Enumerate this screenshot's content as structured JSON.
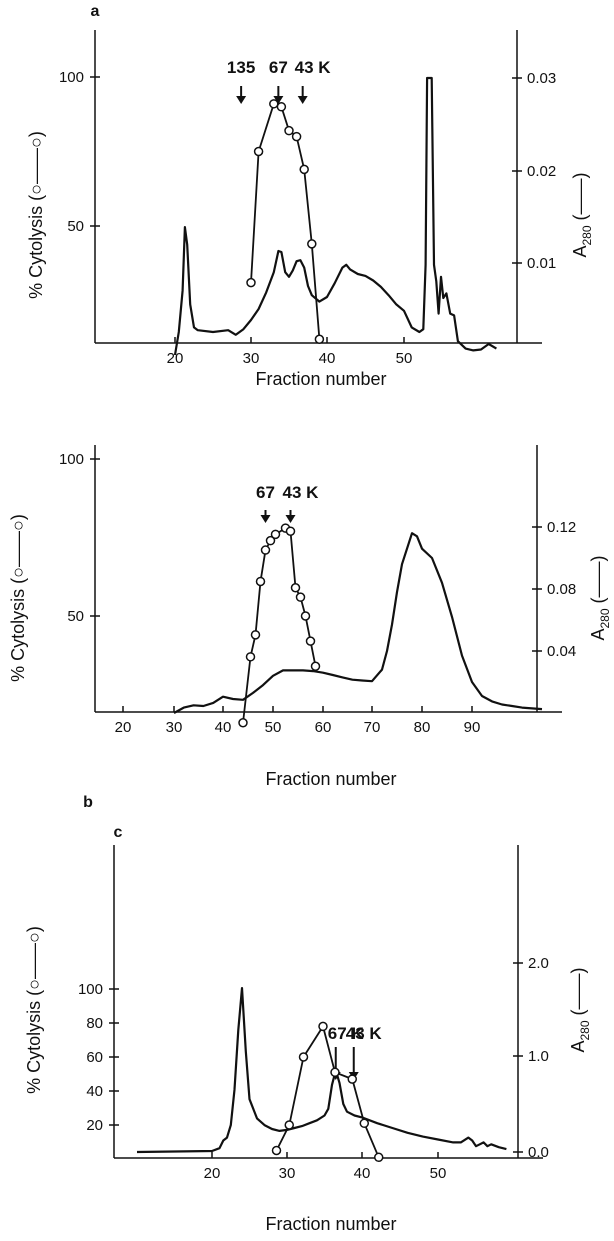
{
  "chart_data": [
    {
      "panel": "a",
      "type": "line",
      "xlabel": "Fraction number",
      "ylabel": "% Cytolysis (○——○)",
      "y2label": "A280 (——)",
      "x_ticks": [
        "20",
        "30",
        "40",
        "50"
      ],
      "y_ticks": [
        "50",
        "100"
      ],
      "y2_ticks": [
        "0.01",
        "0.02",
        "0.03"
      ],
      "markers": [
        {
          "label": "135",
          "fraction": 28.7
        },
        {
          "label": "67",
          "fraction": 33.6
        },
        {
          "label": "43 K",
          "fraction": 36.8
        }
      ],
      "series": [
        {
          "role": "cytolysis",
          "x": [
            30,
            31,
            33,
            34,
            35,
            36,
            37,
            38,
            39
          ],
          "y": [
            31,
            75,
            91,
            90,
            82,
            80,
            69,
            44,
            12
          ]
        },
        {
          "role": "A280",
          "x": [
            20,
            20.5,
            21,
            21.3,
            21.6,
            22,
            22.5,
            23,
            25,
            27,
            28,
            29,
            30,
            31,
            32,
            33,
            33.6,
            34,
            34.5,
            35,
            35.5,
            36,
            36.5,
            37,
            37.5,
            38,
            39,
            40,
            41,
            42,
            42.5,
            43,
            44,
            45,
            46,
            47,
            48,
            49,
            50,
            51,
            52,
            52.5,
            52.8,
            53,
            53.6,
            53.9,
            54.2,
            54.5,
            54.8,
            55.1,
            55.5,
            56,
            56.5,
            57,
            58,
            59,
            60,
            61,
            62
          ],
          "y": [
            0,
            0.0025,
            0.007,
            0.0139,
            0.012,
            0.0055,
            0.003,
            0.0027,
            0.0025,
            0.0027,
            0.0022,
            0.0028,
            0.0038,
            0.005,
            0.0068,
            0.009,
            0.0113,
            0.0112,
            0.009,
            0.0085,
            0.0092,
            0.0102,
            0.0103,
            0.0095,
            0.0075,
            0.0065,
            0.0058,
            0.0063,
            0.0078,
            0.0095,
            0.0098,
            0.0093,
            0.0088,
            0.0086,
            0.0081,
            0.0074,
            0.0065,
            0.0055,
            0.0048,
            0.003,
            0.0025,
            0.0028,
            0.0098,
            0.03,
            0.03,
            0.0098,
            0.008,
            0.0045,
            0.0085,
            0.0062,
            0.0067,
            0.0045,
            0.0043,
            0.0015,
            0.0007,
            0.0005,
            0.0006,
            0.0012,
            0.0007
          ]
        }
      ]
    },
    {
      "panel": "b",
      "type": "line",
      "xlabel": "Fraction number",
      "ylabel": "% Cytolysis (○——○)",
      "y2label": "A280 (——)",
      "x_ticks": [
        "20",
        "30",
        "40",
        "50",
        "60",
        "70",
        "80",
        "90"
      ],
      "y_ticks": [
        "50",
        "100"
      ],
      "y2_ticks": [
        "0.04",
        "0.08",
        "0.12"
      ],
      "markers": [
        {
          "label": "67",
          "fraction": 48.5
        },
        {
          "label": "43 K",
          "fraction": 53.5
        }
      ],
      "series": [
        {
          "role": "cytolysis",
          "x": [
            44,
            45.5,
            46.5,
            47.5,
            48.5,
            49.5,
            50.5,
            52.5,
            53.5,
            54.5,
            55.5,
            56.5,
            57.5,
            58.5
          ],
          "y": [
            16,
            37,
            44,
            61,
            71,
            74,
            76,
            78,
            77,
            59,
            56,
            50,
            42,
            34
          ]
        },
        {
          "role": "A280",
          "x": [
            30,
            32,
            34,
            36,
            38,
            40,
            42,
            44,
            46,
            48,
            50,
            52,
            54,
            56,
            58,
            60,
            62,
            64,
            66,
            68,
            70,
            72,
            73,
            74,
            75,
            76,
            77,
            78,
            79,
            80,
            82,
            84,
            86,
            88,
            90,
            92,
            94,
            96,
            98,
            100,
            104
          ],
          "y": [
            0,
            0.0035,
            0.005,
            0.0045,
            0.0065,
            0.0105,
            0.009,
            0.0085,
            0.013,
            0.018,
            0.024,
            0.0275,
            0.0275,
            0.0275,
            0.027,
            0.026,
            0.0245,
            0.023,
            0.0215,
            0.021,
            0.0205,
            0.028,
            0.04,
            0.057,
            0.078,
            0.096,
            0.106,
            0.116,
            0.114,
            0.106,
            0.1,
            0.084,
            0.062,
            0.037,
            0.02,
            0.011,
            0.0075,
            0.0055,
            0.0045,
            0.0035,
            0.0025
          ]
        }
      ]
    },
    {
      "panel": "c",
      "type": "line",
      "xlabel": "Fraction number",
      "ylabel": "% Cytolysis (○——○)",
      "y2label": "A280 (——)",
      "x_ticks": [
        "20",
        "30",
        "40",
        "50"
      ],
      "y_ticks": [
        "20",
        "40",
        "60",
        "80",
        "100"
      ],
      "y2_ticks": [
        "0.0",
        "1.0",
        "2.0"
      ],
      "markers": [
        {
          "label": "67 K",
          "fraction": 36.5
        },
        {
          "label": "43 K",
          "fraction": 38.9
        }
      ],
      "series": [
        {
          "role": "cytolysis",
          "x": [
            28.6,
            30.3,
            32.2,
            34.8,
            36.4,
            38.7,
            40.3,
            42.2
          ],
          "y": [
            5,
            20,
            60,
            78,
            51,
            47,
            21,
            1
          ]
        },
        {
          "role": "A280",
          "x": [
            10,
            20,
            21,
            21.5,
            22,
            22.5,
            23,
            23.5,
            24,
            24.5,
            25,
            26,
            27,
            28,
            29,
            30,
            31,
            32,
            33,
            34,
            35,
            35.5,
            36,
            36.5,
            37,
            37.5,
            38,
            39,
            40,
            42,
            44,
            46,
            48,
            50,
            52,
            53,
            54,
            54.5,
            55,
            55.5,
            56,
            56.5,
            57,
            58,
            59
          ],
          "y": [
            0,
            0.01,
            0.04,
            0.12,
            0.15,
            0.28,
            0.65,
            1.28,
            1.73,
            1.05,
            0.55,
            0.35,
            0.28,
            0.24,
            0.22,
            0.23,
            0.25,
            0.27,
            0.3,
            0.33,
            0.38,
            0.45,
            0.7,
            0.85,
            0.72,
            0.5,
            0.42,
            0.38,
            0.36,
            0.3,
            0.25,
            0.2,
            0.16,
            0.13,
            0.1,
            0.1,
            0.15,
            0.12,
            0.06,
            0.08,
            0.1,
            0.06,
            0.08,
            0.05,
            0.03
          ]
        }
      ]
    }
  ]
}
